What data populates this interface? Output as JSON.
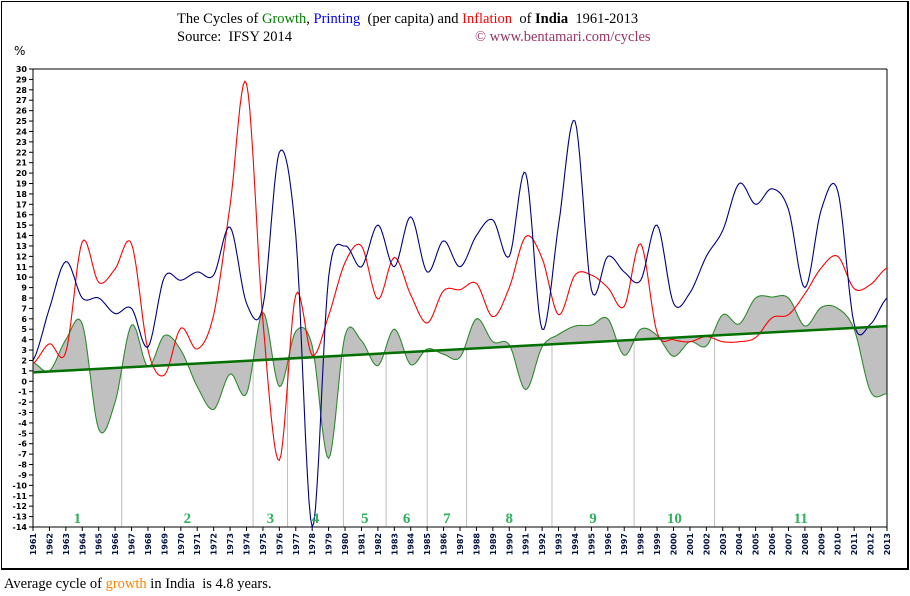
{
  "title": {
    "prefix": "The Cycles of ",
    "growth": "Growth",
    "comma": ", ",
    "printing": "Printing",
    "mid": "  (per capita) and ",
    "inflation": "Inflation",
    "of": "  of ",
    "country": "India",
    "range": "  1961-2013"
  },
  "source": "Source:  IFSY 2014",
  "copyright": "© www.bentamari.com/cycles",
  "footer": {
    "pre": "Average cycle of ",
    "word": "growth",
    "post": " in India  is 4.8 years."
  },
  "colors": {
    "growth": "#008000",
    "growth_line": "#2e8b2e",
    "printing": "#000080",
    "inflation": "#ff0000",
    "fill": "#c0c0c0",
    "trend": "#007000",
    "cycle_label": "#2db35a",
    "divider": "#bdbdbd",
    "copyright": "#993366",
    "footer_word": "#ff8000",
    "title_printing": "#0000ff"
  },
  "chart_data": {
    "type": "line",
    "ylabel": "%",
    "ylim": [
      -14,
      30
    ],
    "xlim": [
      1961,
      2013
    ],
    "grid": false,
    "x": [
      1961,
      1962,
      1963,
      1964,
      1965,
      1966,
      1967,
      1968,
      1969,
      1970,
      1971,
      1972,
      1973,
      1974,
      1975,
      1976,
      1977,
      1978,
      1979,
      1980,
      1981,
      1982,
      1983,
      1984,
      1985,
      1986,
      1987,
      1988,
      1989,
      1990,
      1991,
      1992,
      1993,
      1994,
      1995,
      1996,
      1997,
      1998,
      1999,
      2000,
      2001,
      2002,
      2003,
      2004,
      2005,
      2006,
      2007,
      2008,
      2009,
      2010,
      2011,
      2012,
      2013
    ],
    "series": [
      {
        "name": "Printing",
        "color": "#000080",
        "values": [
          2,
          7,
          11.5,
          8,
          8,
          6.5,
          7,
          3.3,
          10,
          9.7,
          10.5,
          10.2,
          14.8,
          7.5,
          7.2,
          22,
          14,
          -14,
          10,
          13,
          11,
          15,
          11,
          15.8,
          10.5,
          13.5,
          11,
          14,
          15.5,
          12,
          20,
          5,
          15,
          25,
          8.8,
          12,
          10.5,
          9.7,
          15,
          7.5,
          8.5,
          12,
          14.5,
          19,
          17,
          18.5,
          16.5,
          9,
          16.5,
          18.3,
          5.5,
          5.5,
          8
        ]
      },
      {
        "name": "Inflation",
        "color": "#ff0000",
        "values": [
          1.7,
          3.6,
          2.8,
          13.4,
          9.5,
          10.8,
          13.2,
          3,
          0.6,
          5.1,
          3.1,
          6.4,
          16.9,
          28.6,
          5.8,
          -7.6,
          8.3,
          2.5,
          6.3,
          11.4,
          13,
          7.9,
          11.9,
          8.3,
          5.6,
          8.7,
          8.8,
          9.4,
          6.2,
          9,
          13.9,
          11.8,
          6.4,
          10.2,
          10.2,
          9,
          7.2,
          13.2,
          4.7,
          4,
          3.8,
          4.3,
          3.8,
          3.8,
          4.2,
          6.1,
          6.4,
          8.4,
          10.9,
          12,
          8.9,
          9.3,
          10.9
        ]
      },
      {
        "name": "Growth",
        "color": "#2e8b2e",
        "values": [
          1.8,
          1,
          4,
          5.5,
          -4.6,
          -2,
          5.4,
          1.4,
          4.4,
          3,
          -0.5,
          -2.7,
          0.7,
          -1.2,
          6.6,
          -0.5,
          4.8,
          3.4,
          -7.4,
          4.4,
          3.9,
          1.5,
          5,
          1.6,
          3.1,
          2.6,
          2.3,
          6,
          3.8,
          3.5,
          -0.8,
          3.3,
          4.5,
          5.3,
          5.4,
          6,
          2.5,
          5,
          4.4,
          2.4,
          3.8,
          3.4,
          6.4,
          5.5,
          8,
          8.1,
          8,
          5.3,
          7.1,
          7,
          5,
          -1,
          -1.2
        ]
      }
    ],
    "trend": {
      "series": "Growth",
      "from": [
        1961,
        0.85
      ],
      "to": [
        2013,
        5.3
      ]
    },
    "cycle_boundaries": [
      1966.4,
      1974.4,
      1976.5,
      1979.9,
      1982.5,
      1985,
      1987.4,
      1992.6,
      1997.6,
      2002.5
    ],
    "cycle_labels": [
      "1",
      "2",
      "3",
      "4",
      "5",
      "6",
      "7",
      "8",
      "9",
      "10",
      "11"
    ]
  }
}
